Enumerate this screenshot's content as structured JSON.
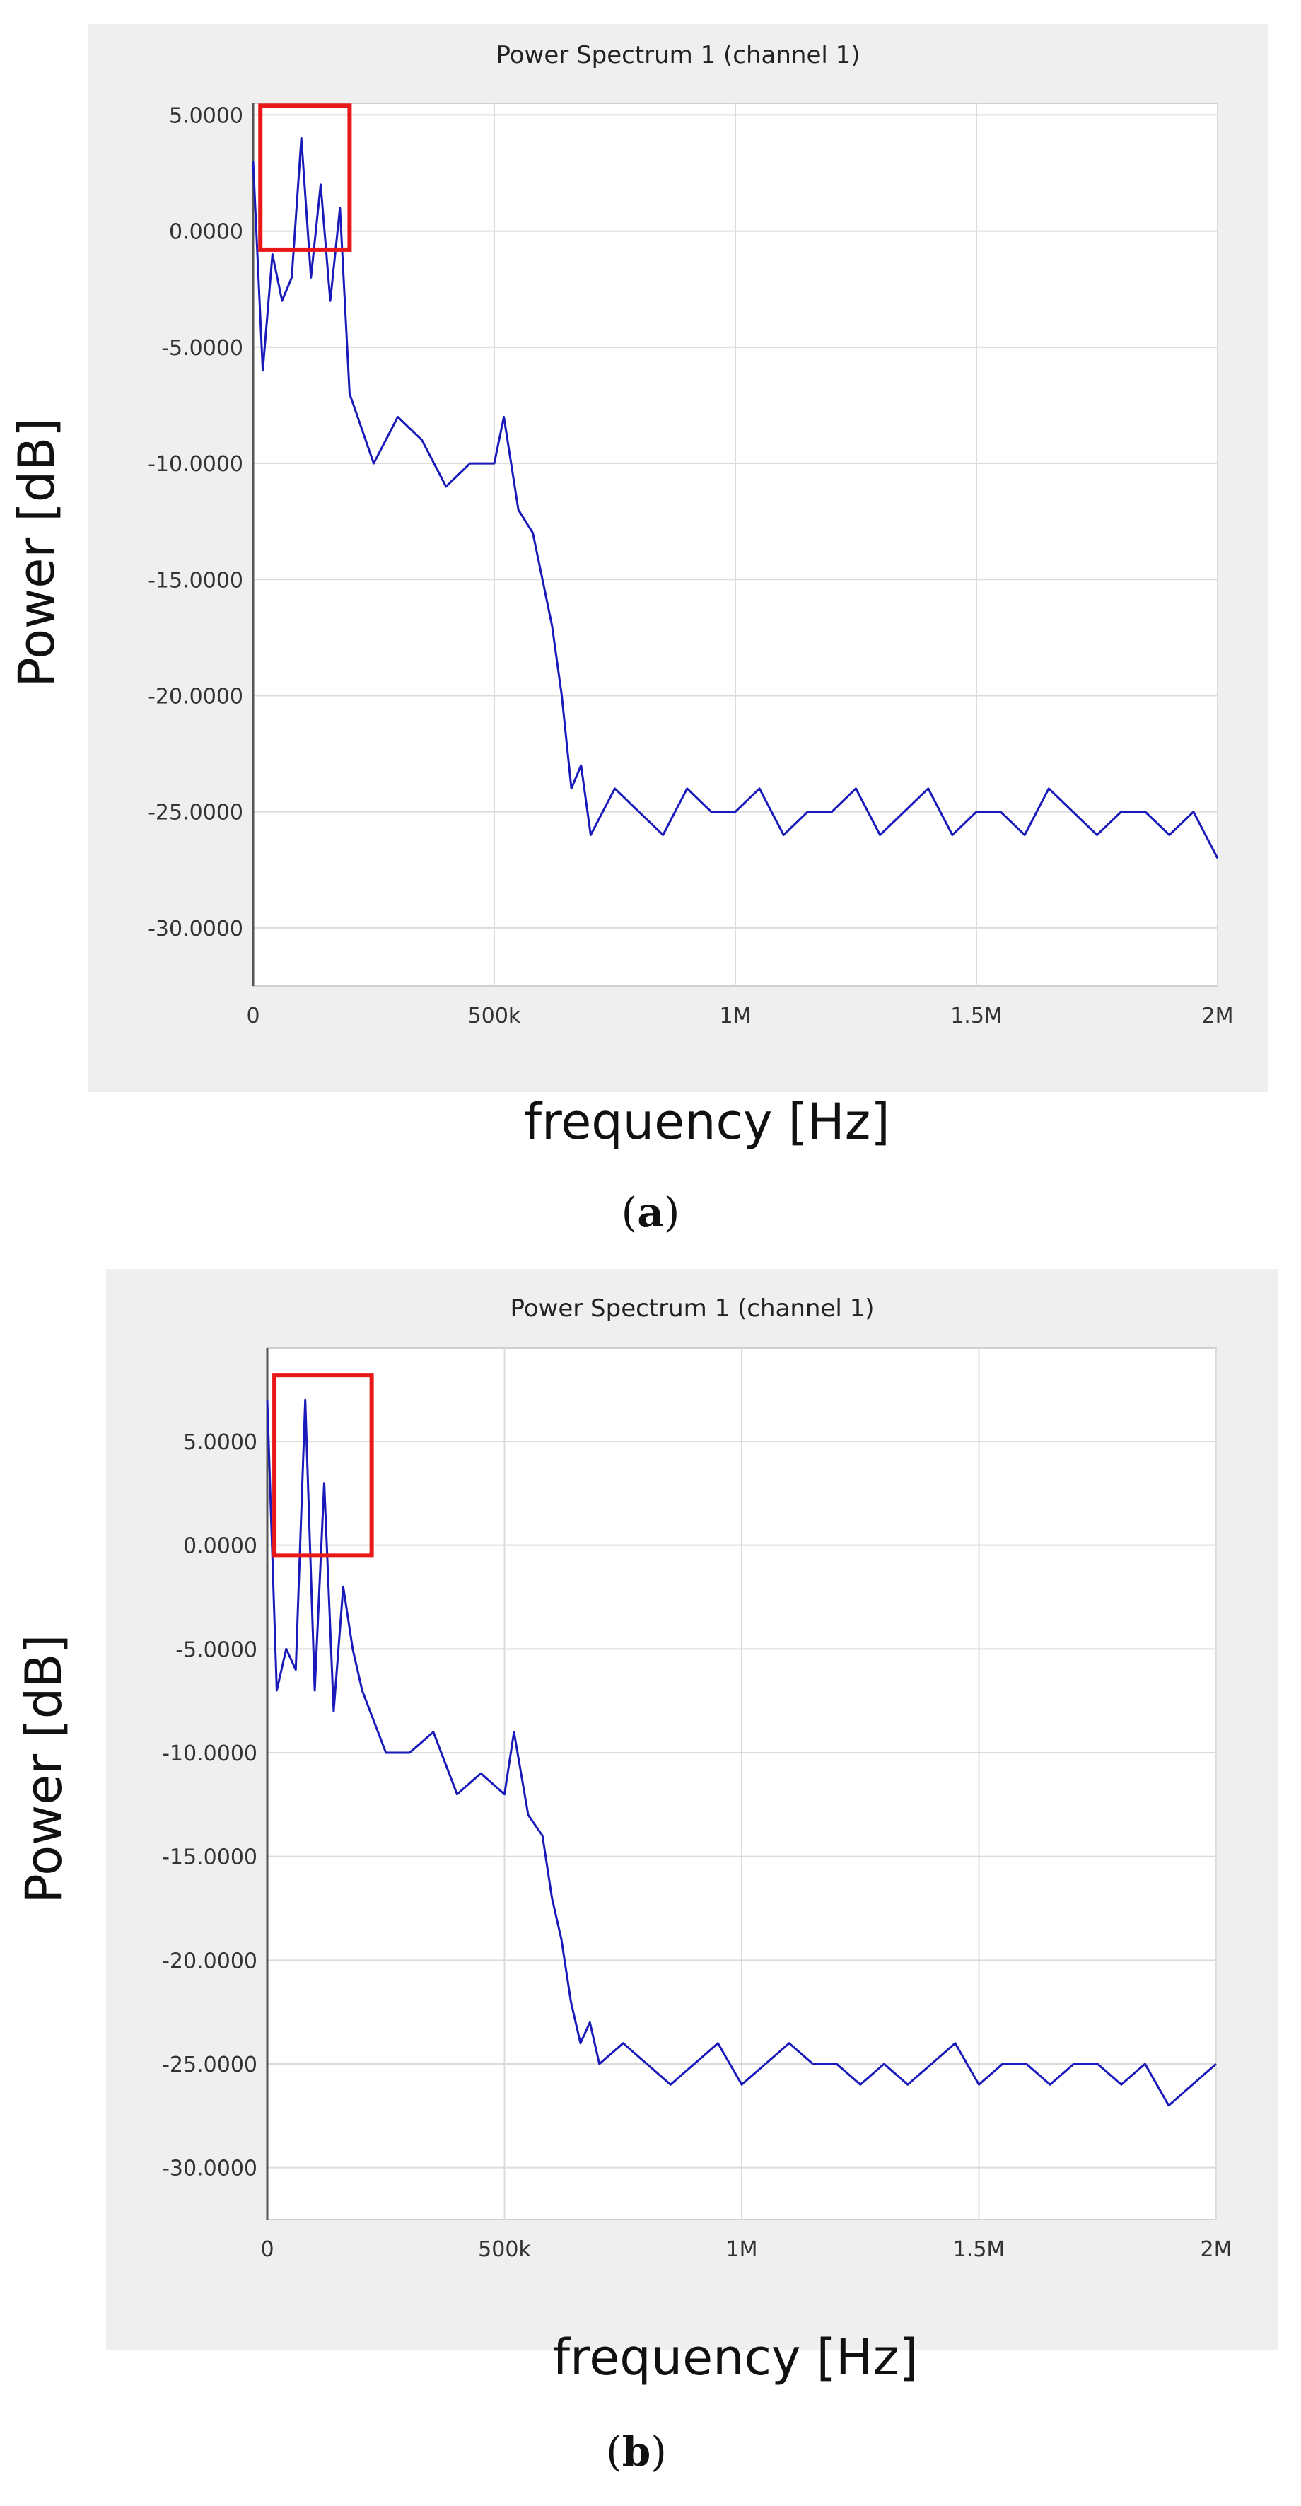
{
  "chart_data": [
    {
      "type": "line",
      "panel": "a",
      "title": "Power Spectrum 1 (channel 1)",
      "xlabel": "frequency [Hz]",
      "ylabel": "Power [dB]",
      "xlim": [
        0,
        2000000
      ],
      "ylim": [
        -32.5,
        5.5
      ],
      "x_tick_values": [
        0,
        500000,
        1000000,
        1500000,
        2000000
      ],
      "x_tick_labels": [
        "0",
        "500k",
        "1M",
        "1.5M",
        "2M"
      ],
      "y_tick_values": [
        5,
        0,
        -5,
        -10,
        -15,
        -20,
        -25,
        -30
      ],
      "y_tick_labels": [
        "5.0000",
        "0.0000",
        "-5.0000",
        "-10.0000",
        "-15.0000",
        "-20.0000",
        "-25.0000",
        "-30.0000"
      ],
      "grid": true,
      "line_color": "#1a1aba",
      "highlight_box": {
        "x": [
          15000,
          200000
        ],
        "y": [
          -0.8,
          5.4
        ],
        "color": "#e81818"
      },
      "series": [
        {
          "x": [
            0,
            20000,
            40000,
            60000,
            80000,
            100000,
            120000,
            140000,
            160000,
            180000,
            200000,
            250000,
            300000,
            350000,
            400000,
            450000,
            500000,
            520000,
            550000,
            580000,
            600000,
            620000,
            640000,
            660000,
            680000,
            700000,
            750000,
            800000,
            850000,
            900000,
            950000,
            1000000,
            1050000,
            1100000,
            1150000,
            1200000,
            1250000,
            1300000,
            1350000,
            1400000,
            1450000,
            1500000,
            1550000,
            1600000,
            1650000,
            1700000,
            1750000,
            1800000,
            1850000,
            1900000,
            1950000,
            2000000
          ],
          "y": [
            3,
            -6,
            -1,
            -3,
            -2,
            4,
            -2,
            2,
            -3,
            1,
            -7,
            -10,
            -8,
            -9,
            -11,
            -10,
            -10,
            -8,
            -12,
            -13,
            -15,
            -17,
            -20,
            -24,
            -23,
            -26,
            -24,
            -25,
            -26,
            -24,
            -25,
            -25,
            -24,
            -26,
            -25,
            -25,
            -24,
            -26,
            -25,
            -24,
            -26,
            -25,
            -25,
            -26,
            -24,
            -25,
            -26,
            -25,
            -25,
            -26,
            -25,
            -27
          ]
        }
      ]
    },
    {
      "type": "line",
      "panel": "b",
      "title": "Power Spectrum 1 (channel 1)",
      "xlabel": "frequency [Hz]",
      "ylabel": "Power [dB]",
      "xlim": [
        0,
        2000000
      ],
      "ylim": [
        -32.5,
        9.5
      ],
      "x_tick_values": [
        0,
        500000,
        1000000,
        1500000,
        2000000
      ],
      "x_tick_labels": [
        "0",
        "500k",
        "1M",
        "1.5M",
        "2M"
      ],
      "y_tick_values": [
        5,
        0,
        -5,
        -10,
        -15,
        -20,
        -25,
        -30
      ],
      "y_tick_labels": [
        "5.0000",
        "0.0000",
        "-5.0000",
        "-10.0000",
        "-15.0000",
        "-20.0000",
        "-25.0000",
        "-30.0000"
      ],
      "grid": true,
      "line_color": "#1a1aba",
      "highlight_box": {
        "x": [
          15000,
          220000
        ],
        "y": [
          -0.5,
          8.2
        ],
        "color": "#e81818"
      },
      "series": [
        {
          "x": [
            0,
            20000,
            40000,
            60000,
            80000,
            100000,
            120000,
            140000,
            160000,
            180000,
            200000,
            250000,
            300000,
            350000,
            400000,
            450000,
            500000,
            520000,
            550000,
            580000,
            600000,
            620000,
            640000,
            660000,
            680000,
            700000,
            750000,
            800000,
            850000,
            900000,
            950000,
            1000000,
            1050000,
            1100000,
            1150000,
            1200000,
            1250000,
            1300000,
            1350000,
            1400000,
            1450000,
            1500000,
            1550000,
            1600000,
            1650000,
            1700000,
            1750000,
            1800000,
            1850000,
            1900000,
            1950000,
            2000000
          ],
          "y": [
            7,
            -7,
            -5,
            -6,
            7,
            -7,
            3,
            -8,
            -2,
            -5,
            -7,
            -10,
            -10,
            -9,
            -12,
            -11,
            -12,
            -9,
            -13,
            -14,
            -17,
            -19,
            -22,
            -24,
            -23,
            -25,
            -24,
            -25,
            -26,
            -25,
            -24,
            -26,
            -25,
            -24,
            -25,
            -25,
            -26,
            -25,
            -26,
            -25,
            -24,
            -26,
            -25,
            -25,
            -26,
            -25,
            -25,
            -26,
            -25,
            -27,
            -26,
            -25
          ]
        }
      ]
    }
  ],
  "captions": [
    "(a)",
    "(b)"
  ]
}
